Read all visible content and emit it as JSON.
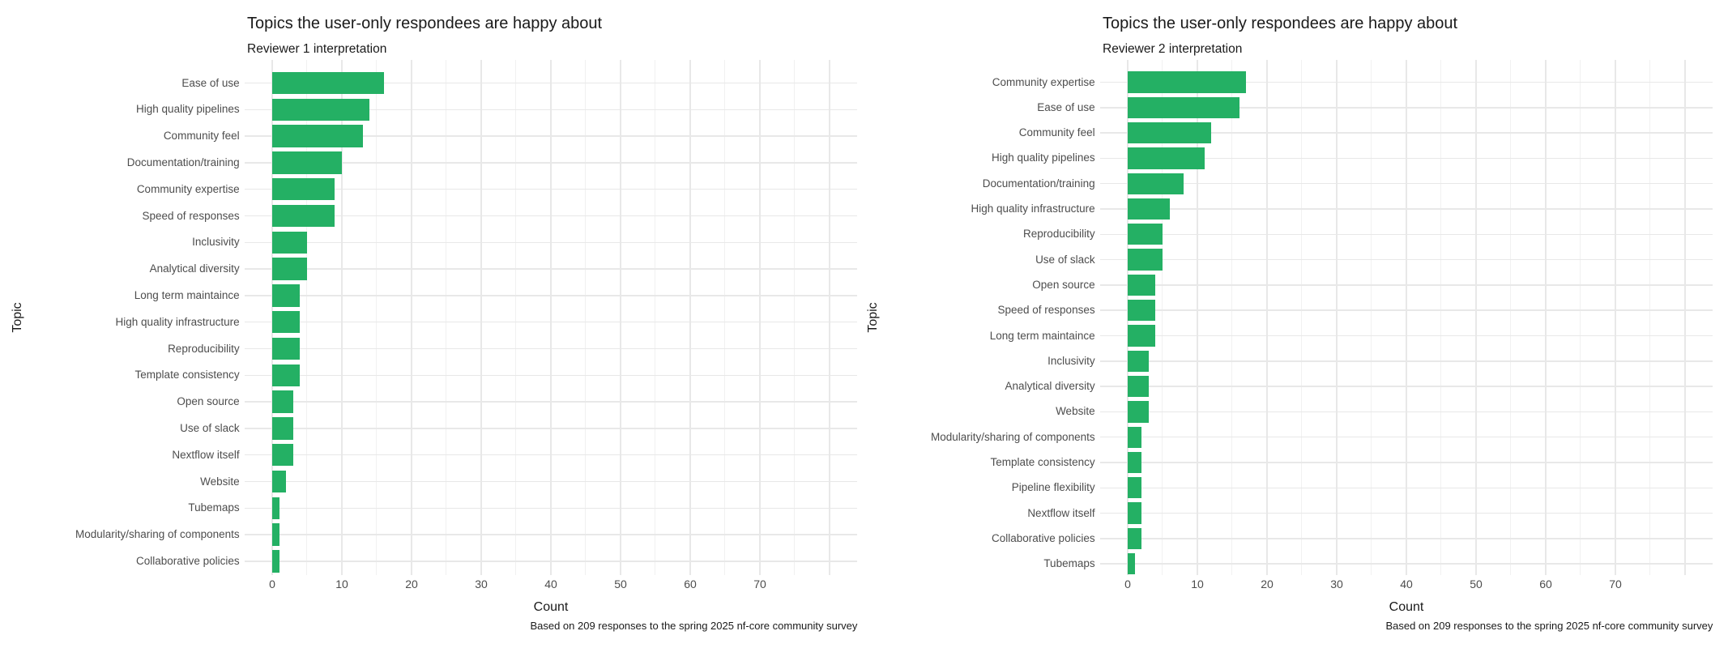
{
  "colors": {
    "bar": "#24B064",
    "grid_major": "#e8e8e8",
    "grid_minor": "#f1f1f1",
    "axis_text": "#4d4d4d",
    "title_text": "#1a1a1a",
    "background": "#ffffff"
  },
  "chart_data": [
    {
      "type": "bar",
      "orientation": "horizontal",
      "title": "Topics the user-only respondees are happy about",
      "subtitle": "Reviewer 1 interpretation",
      "xlabel": "Count",
      "ylabel": "Topic",
      "caption": "Based on 209 responses to the spring 2025 nf-core community survey",
      "xlim": [
        0,
        80
      ],
      "xticks": [
        0,
        10,
        20,
        30,
        40,
        50,
        60,
        70
      ],
      "grid": true,
      "legend": false,
      "categories": [
        "Ease of use",
        "High quality pipelines",
        "Community feel",
        "Documentation/training",
        "Community expertise",
        "Speed of responses",
        "Inclusivity",
        "Analytical diversity",
        "Long term maintaince",
        "High quality infrastructure",
        "Reproducibility",
        "Template consistency",
        "Open source",
        "Use of slack",
        "Nextflow itself",
        "Website",
        "Tubemaps",
        "Modularity/sharing of components",
        "Collaborative policies"
      ],
      "values": [
        16,
        14,
        13,
        10,
        9,
        9,
        5,
        5,
        4,
        4,
        4,
        4,
        3,
        3,
        3,
        2,
        1,
        1,
        1
      ]
    },
    {
      "type": "bar",
      "orientation": "horizontal",
      "title": "Topics the user-only respondees are happy about",
      "subtitle": "Reviewer 2 interpretation",
      "xlabel": "Count",
      "ylabel": "Topic",
      "caption": "Based on 209 responses to the spring 2025 nf-core community survey",
      "xlim": [
        0,
        80
      ],
      "xticks": [
        0,
        10,
        20,
        30,
        40,
        50,
        60,
        70
      ],
      "grid": true,
      "legend": false,
      "categories": [
        "Community expertise",
        "Ease of use",
        "Community feel",
        "High quality pipelines",
        "Documentation/training",
        "High quality infrastructure",
        "Reproducibility",
        "Use of slack",
        "Open source",
        "Speed of responses",
        "Long term maintaince",
        "Inclusivity",
        "Analytical diversity",
        "Website",
        "Modularity/sharing of components",
        "Template consistency",
        "Pipeline flexibility",
        "Nextflow itself",
        "Collaborative policies",
        "Tubemaps"
      ],
      "values": [
        17,
        16,
        12,
        11,
        8,
        6,
        5,
        5,
        4,
        4,
        4,
        3,
        3,
        3,
        2,
        2,
        2,
        2,
        2,
        1
      ]
    }
  ]
}
